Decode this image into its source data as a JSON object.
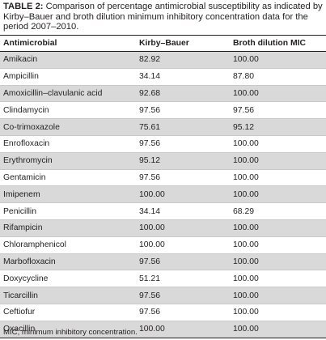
{
  "caption": {
    "label": "TABLE 2:",
    "text": " Comparison of percentage antimicrobial susceptibility as indicated by Kirby–Bauer and broth dilution minimum inhibitory concentration data for the period 2007–2010."
  },
  "table": {
    "headers": [
      "Antimicrobial",
      "Kirby–Bauer",
      "Broth dilution MIC"
    ],
    "rows": [
      [
        "Amikacin",
        "82.92",
        "100.00"
      ],
      [
        "Ampicillin",
        "34.14",
        "87.80"
      ],
      [
        "Amoxicillin–clavulanic acid",
        "92.68",
        "100.00"
      ],
      [
        "Clindamycin",
        "97.56",
        "97.56"
      ],
      [
        "Co-trimoxazole",
        "75.61",
        "95.12"
      ],
      [
        "Enrofloxacin",
        "97.56",
        "100.00"
      ],
      [
        "Erythromycin",
        "95.12",
        "100.00"
      ],
      [
        "Gentamicin",
        "97.56",
        "100.00"
      ],
      [
        "Imipenem",
        "100.00",
        "100.00"
      ],
      [
        "Penicillin",
        "34.14",
        "68.29"
      ],
      [
        "Rifampicin",
        "100.00",
        "100.00"
      ],
      [
        "Chloramphenicol",
        "100.00",
        "100.00"
      ],
      [
        "Marbofloxacin",
        "97.56",
        "100.00"
      ],
      [
        "Doxycycline",
        "51.21",
        "100.00"
      ],
      [
        "Ticarcillin",
        "97.56",
        "100.00"
      ],
      [
        "Ceftiofur",
        "97.56",
        "100.00"
      ],
      [
        "Oxacillin",
        "100.00",
        "100.00"
      ]
    ]
  },
  "footnote": "MIC, minimum inhibitory concentration.",
  "colors": {
    "stripe": "#d9d9d9",
    "text": "#231f20",
    "rule": "#231f20"
  }
}
